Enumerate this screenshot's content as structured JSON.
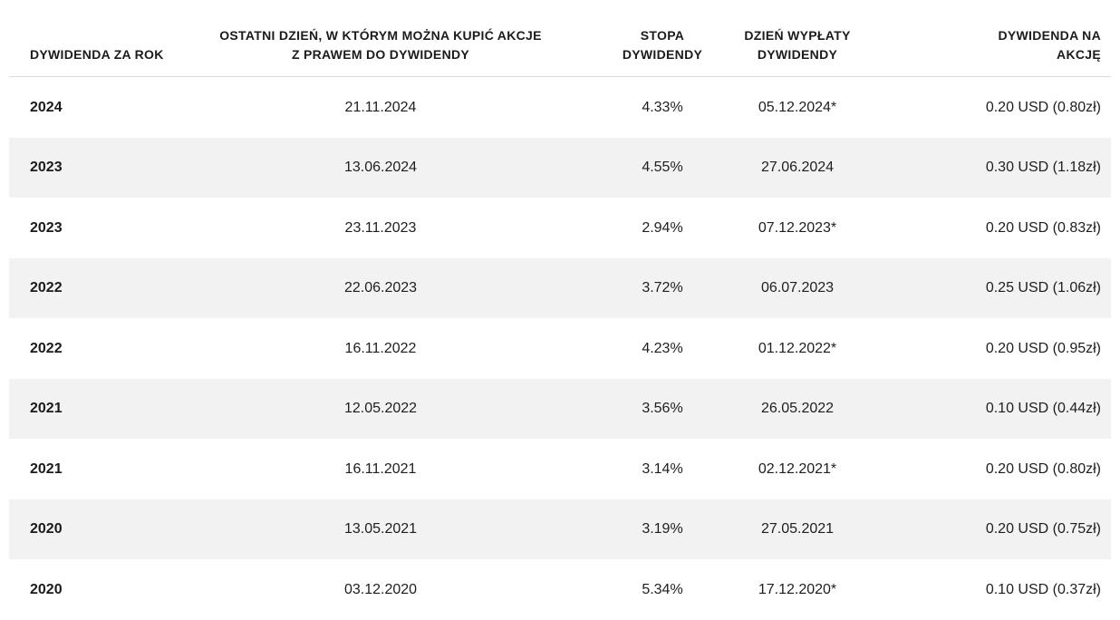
{
  "table": {
    "columns": [
      {
        "id": "year",
        "align": "left",
        "label": "DYWIDENDA ZA ROK"
      },
      {
        "id": "buy_until",
        "align": "center",
        "line1": "OSTATNI DZIEŃ, W KTÓRYM MOŻNA KUPIĆ AKCJE",
        "line2": "Z PRAWEM DO DYWIDENDY"
      },
      {
        "id": "rate",
        "align": "center",
        "line1": "STOPA",
        "line2": "DYWIDENDY"
      },
      {
        "id": "pay_day",
        "align": "center",
        "line1": "DZIEŃ WYPŁATY",
        "line2": "DYWIDENDY"
      },
      {
        "id": "per_share",
        "align": "right",
        "line1": "DYWIDENDA NA",
        "line2": "AKCJĘ"
      }
    ],
    "rows": [
      {
        "year": "2024",
        "buy_until": "21.11.2024",
        "rate": "4.33%",
        "pay_day": "05.12.2024*",
        "per_share": "0.20 USD (0.80zł)"
      },
      {
        "year": "2023",
        "buy_until": "13.06.2024",
        "rate": "4.55%",
        "pay_day": "27.06.2024",
        "per_share": "0.30 USD (1.18zł)"
      },
      {
        "year": "2023",
        "buy_until": "23.11.2023",
        "rate": "2.94%",
        "pay_day": "07.12.2023*",
        "per_share": "0.20 USD (0.83zł)"
      },
      {
        "year": "2022",
        "buy_until": "22.06.2023",
        "rate": "3.72%",
        "pay_day": "06.07.2023",
        "per_share": "0.25 USD (1.06zł)"
      },
      {
        "year": "2022",
        "buy_until": "16.11.2022",
        "rate": "4.23%",
        "pay_day": "01.12.2022*",
        "per_share": "0.20 USD (0.95zł)"
      },
      {
        "year": "2021",
        "buy_until": "12.05.2022",
        "rate": "3.56%",
        "pay_day": "26.05.2022",
        "per_share": "0.10 USD (0.44zł)"
      },
      {
        "year": "2021",
        "buy_until": "16.11.2021",
        "rate": "3.14%",
        "pay_day": "02.12.2021*",
        "per_share": "0.20 USD (0.80zł)"
      },
      {
        "year": "2020",
        "buy_until": "13.05.2021",
        "rate": "3.19%",
        "pay_day": "27.05.2021",
        "per_share": "0.20 USD (0.75zł)"
      },
      {
        "year": "2020",
        "buy_until": "03.12.2020",
        "rate": "5.34%",
        "pay_day": "17.12.2020*",
        "per_share": "0.10 USD (0.37zł)"
      }
    ],
    "colors": {
      "stripe": "#f2f2f2",
      "header_border": "#d9d9d9",
      "header_text": "#1b1b1b",
      "body_text": "#1e1e1e"
    }
  }
}
